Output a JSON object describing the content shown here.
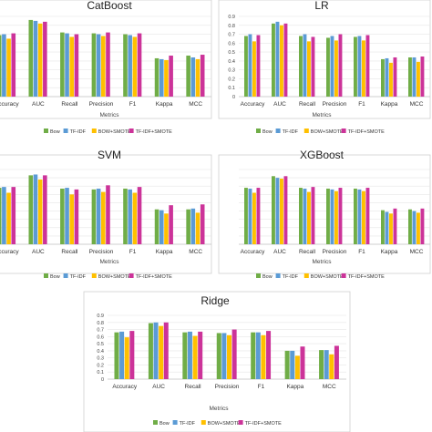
{
  "chart_data": [
    {
      "type": "bar",
      "title": "CatBoost",
      "xlabel": "Metrics",
      "ylim": [
        0,
        0.9
      ],
      "categories": [
        "Accuracy",
        "AUC",
        "Recall",
        "Precision",
        "F1",
        "Kappa",
        "MCC"
      ],
      "series": [
        {
          "name": "Bow",
          "values": [
            0.69,
            0.86,
            0.72,
            0.71,
            0.7,
            0.43,
            0.46
          ]
        },
        {
          "name": "TF-IDF",
          "values": [
            0.7,
            0.85,
            0.71,
            0.7,
            0.69,
            0.42,
            0.44
          ]
        },
        {
          "name": "BOW+SMOTE",
          "values": [
            0.65,
            0.82,
            0.67,
            0.68,
            0.67,
            0.41,
            0.42
          ]
        },
        {
          "name": "TF-IDF+SMOTE",
          "values": [
            0.71,
            0.84,
            0.7,
            0.72,
            0.71,
            0.46,
            0.47
          ]
        }
      ],
      "grid": true,
      "legend": "bottom"
    },
    {
      "type": "bar",
      "title": "LR",
      "xlabel": "Metrics",
      "ylim": [
        0,
        0.9
      ],
      "categories": [
        "Accuracy",
        "AUC",
        "Recall",
        "Precision",
        "F1",
        "Kappa",
        "MCC"
      ],
      "series": [
        {
          "name": "Bow",
          "values": [
            0.68,
            0.82,
            0.68,
            0.66,
            0.67,
            0.42,
            0.44
          ]
        },
        {
          "name": "TF-IDF",
          "values": [
            0.7,
            0.84,
            0.7,
            0.68,
            0.68,
            0.43,
            0.44
          ]
        },
        {
          "name": "BOW+SMOTE",
          "values": [
            0.62,
            0.8,
            0.62,
            0.63,
            0.63,
            0.38,
            0.39
          ]
        },
        {
          "name": "TF-IDF+SMOTE",
          "values": [
            0.69,
            0.82,
            0.67,
            0.7,
            0.69,
            0.44,
            0.45
          ]
        }
      ],
      "grid": true,
      "legend": "bottom"
    },
    {
      "type": "bar",
      "title": "SVM",
      "xlabel": "Metrics",
      "ylim": [
        0,
        0.9
      ],
      "categories": [
        "Accuracy",
        "AUC",
        "Recall",
        "Precision",
        "F1",
        "Kappa",
        "MCC"
      ],
      "series": [
        {
          "name": "Bow",
          "values": [
            0.68,
            0.83,
            0.67,
            0.66,
            0.67,
            0.42,
            0.42
          ]
        },
        {
          "name": "TF-IDF",
          "values": [
            0.69,
            0.84,
            0.68,
            0.67,
            0.66,
            0.41,
            0.43
          ]
        },
        {
          "name": "BOW+SMOTE",
          "values": [
            0.62,
            0.78,
            0.6,
            0.63,
            0.62,
            0.37,
            0.38
          ]
        },
        {
          "name": "TF-IDF+SMOTE",
          "values": [
            0.69,
            0.83,
            0.66,
            0.71,
            0.69,
            0.47,
            0.48
          ]
        }
      ],
      "grid": true,
      "legend": "bottom"
    },
    {
      "type": "bar",
      "title": "XGBoost",
      "xlabel": "Metrics",
      "ylim": [
        0,
        0.9
      ],
      "categories": [
        "Accuracy",
        "AUC",
        "Recall",
        "Precision",
        "F1",
        "Kappa",
        "MCC"
      ],
      "series": [
        {
          "name": "Bow",
          "values": [
            0.68,
            0.82,
            0.68,
            0.67,
            0.67,
            0.41,
            0.42
          ]
        },
        {
          "name": "TF-IDF",
          "values": [
            0.67,
            0.8,
            0.67,
            0.66,
            0.66,
            0.39,
            0.4
          ]
        },
        {
          "name": "BOW+SMOTE",
          "values": [
            0.62,
            0.79,
            0.63,
            0.64,
            0.64,
            0.37,
            0.38
          ]
        },
        {
          "name": "TF-IDF+SMOTE",
          "values": [
            0.68,
            0.82,
            0.69,
            0.68,
            0.68,
            0.43,
            0.43
          ]
        }
      ],
      "grid": true,
      "legend": "bottom"
    },
    {
      "type": "bar",
      "title": "Ridge",
      "xlabel": "Metrics",
      "ylim": [
        0,
        0.9
      ],
      "yticks": [
        "0",
        "0.1",
        "0.2",
        "0.3",
        "0.4",
        "0.5",
        "0.6",
        "0.7",
        "0.8",
        "0.9"
      ],
      "categories": [
        "Accuracy",
        "AUC",
        "Recall",
        "Precision",
        "F1",
        "Kappa",
        "MCC"
      ],
      "series": [
        {
          "name": "Bow",
          "values": [
            0.66,
            0.79,
            0.66,
            0.65,
            0.66,
            0.4,
            0.41
          ]
        },
        {
          "name": "TF-IDF",
          "values": [
            0.67,
            0.8,
            0.67,
            0.65,
            0.66,
            0.4,
            0.41
          ]
        },
        {
          "name": "BOW+SMOTE",
          "values": [
            0.59,
            0.75,
            0.61,
            0.62,
            0.62,
            0.33,
            0.35
          ]
        },
        {
          "name": "TF-IDF+SMOTE",
          "values": [
            0.68,
            0.8,
            0.67,
            0.7,
            0.68,
            0.46,
            0.47
          ]
        }
      ],
      "grid": true,
      "legend": "bottom"
    }
  ],
  "colors": {
    "Bow": "#70ad47",
    "TF-IDF": "#5b9bd5",
    "BOW+SMOTE": "#ffc000",
    "TF-IDF+SMOTE": "#cc3399"
  }
}
